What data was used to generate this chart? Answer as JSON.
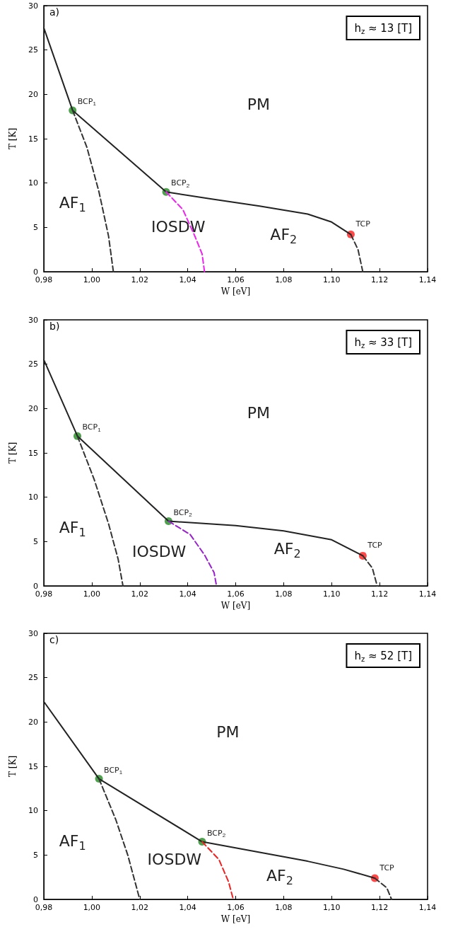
{
  "chart_data": [
    {
      "type": "line",
      "title": "a)",
      "subtitle": "h$_{z}$ ≈ 13 [T]",
      "xlabel": "W [eV]",
      "ylabel": "T [K]",
      "xlim": [
        0.98,
        1.14
      ],
      "xticks": [
        {
          "value": 0.98,
          "label": "0,98"
        },
        {
          "value": 1.0,
          "label": "1,00"
        },
        {
          "value": 1.02,
          "label": "1,02"
        },
        {
          "value": 1.04,
          "label": "1,04"
        },
        {
          "value": 1.06,
          "label": "1,06"
        },
        {
          "value": 1.08,
          "label": "1,08"
        },
        {
          "value": 1.1,
          "label": "1,10"
        },
        {
          "value": 1.12,
          "label": "1,12"
        },
        {
          "value": 1.14,
          "label": "1,14"
        }
      ],
      "ylim": [
        0,
        30
      ],
      "yticks": [
        0,
        5,
        10,
        15,
        20,
        25,
        30
      ],
      "grid": false,
      "series": [
        {
          "color": "#222222",
          "line_style": "solid",
          "x": [
            0.98,
            0.992,
            1.031,
            1.05,
            1.07,
            1.09,
            1.1,
            1.108
          ],
          "values": [
            27.5,
            18.2,
            9,
            8.2,
            7.4,
            6.5,
            5.6,
            4.2
          ]
        },
        {
          "color": "#333333",
          "line_style": "dashed",
          "x": [
            0.992,
            0.998,
            1.003,
            1.007,
            1.009
          ],
          "values": [
            18.2,
            14,
            9,
            4,
            0
          ]
        },
        {
          "color": "#ee22ee",
          "line_style": "dashed",
          "x": [
            1.031,
            1.038,
            1.043,
            1.046,
            1.047
          ],
          "values": [
            9,
            7,
            4,
            2,
            0
          ]
        },
        {
          "color": "#333333",
          "line_style": "dashed",
          "x": [
            1.108,
            1.111,
            1.113
          ],
          "values": [
            4.2,
            2.5,
            0
          ]
        },
        {
          "type": "scatter",
          "marker": "circle",
          "x": [
            0.992,
            1.031
          ],
          "values": [
            18.2,
            9
          ],
          "color": "#228b22"
        },
        {
          "type": "scatter",
          "marker": "circle",
          "x": [
            1.108
          ],
          "values": [
            4.2
          ],
          "color": "#ff1a1a"
        }
      ],
      "annotations": [
        {
          "text": "BCP$_{1}$",
          "x": 0.992,
          "y": 18.2
        },
        {
          "text": "BCP$_{2}$",
          "x": 1.031,
          "y": 9
        },
        {
          "text": "TCP",
          "x": 1.108,
          "y": 4.2
        },
        "PM",
        "AF$_{1}$",
        "IOSDW",
        "AF$_{2}$"
      ]
    },
    {
      "type": "line",
      "title": "b)",
      "subtitle": "h$_{z}$ ≈ 33 [T]",
      "xlabel": "W [eV]",
      "ylabel": "T [K]",
      "xlim": [
        0.98,
        1.14
      ],
      "xticks": [
        {
          "value": 0.98,
          "label": "0,98"
        },
        {
          "value": 1.0,
          "label": "1,00"
        },
        {
          "value": 1.02,
          "label": "1,02"
        },
        {
          "value": 1.04,
          "label": "1,04"
        },
        {
          "value": 1.06,
          "label": "1,06"
        },
        {
          "value": 1.08,
          "label": "1,08"
        },
        {
          "value": 1.1,
          "label": "1,10"
        },
        {
          "value": 1.12,
          "label": "1,12"
        },
        {
          "value": 1.14,
          "label": "1,14"
        }
      ],
      "ylim": [
        0,
        30
      ],
      "yticks": [
        0,
        5,
        10,
        15,
        20,
        25,
        30
      ],
      "grid": false,
      "series": [
        {
          "color": "#222222",
          "line_style": "solid",
          "x": [
            0.98,
            0.994,
            1.032,
            1.06,
            1.08,
            1.1,
            1.113
          ],
          "values": [
            25.5,
            16.9,
            7.3,
            6.8,
            6.2,
            5.2,
            3.4
          ]
        },
        {
          "color": "#333333",
          "line_style": "dashed",
          "x": [
            0.994,
            1.001,
            1.007,
            1.011,
            1.013
          ],
          "values": [
            16.9,
            12,
            7,
            3,
            0
          ]
        },
        {
          "color": "#9922cc",
          "line_style": "dashed",
          "x": [
            1.032,
            1.041,
            1.047,
            1.051,
            1.052
          ],
          "values": [
            7.3,
            5.8,
            3.5,
            1.5,
            0
          ]
        },
        {
          "color": "#333333",
          "line_style": "dashed",
          "x": [
            1.113,
            1.117,
            1.119
          ],
          "values": [
            3.4,
            2,
            0
          ]
        },
        {
          "type": "scatter",
          "marker": "circle",
          "x": [
            0.994,
            1.032
          ],
          "values": [
            16.9,
            7.3
          ],
          "color": "#228b22"
        },
        {
          "type": "scatter",
          "marker": "circle",
          "x": [
            1.113
          ],
          "values": [
            3.4
          ],
          "color": "#ff1a1a"
        }
      ],
      "annotations": [
        {
          "text": "BCP$_{1}$",
          "x": 0.994,
          "y": 16.9
        },
        {
          "text": "BCP$_{2}$",
          "x": 1.032,
          "y": 7.3
        },
        {
          "text": "TCP",
          "x": 1.113,
          "y": 3.4
        },
        "PM",
        "AF$_{1}$",
        "IOSDW",
        "AF$_{2}$"
      ]
    },
    {
      "type": "line",
      "title": "c)",
      "subtitle": "h$_{z}$ ≈ 52 [T]",
      "xlabel": "W [eV]",
      "ylabel": "T [K]",
      "xlim": [
        0.98,
        1.14
      ],
      "xticks": [
        {
          "value": 0.98,
          "label": "0,98"
        },
        {
          "value": 1.0,
          "label": "1,00"
        },
        {
          "value": 1.02,
          "label": "1,02"
        },
        {
          "value": 1.04,
          "label": "1,04"
        },
        {
          "value": 1.06,
          "label": "1,06"
        },
        {
          "value": 1.08,
          "label": "1,08"
        },
        {
          "value": 1.1,
          "label": "1,10"
        },
        {
          "value": 1.12,
          "label": "1,12"
        },
        {
          "value": 1.14,
          "label": "1,14"
        }
      ],
      "ylim": [
        0,
        30
      ],
      "yticks": [
        0,
        5,
        10,
        15,
        20,
        25,
        30
      ],
      "grid": false,
      "series": [
        {
          "color": "#222222",
          "line_style": "solid",
          "x": [
            0.98,
            1.003,
            1.046,
            1.07,
            1.09,
            1.105,
            1.118
          ],
          "values": [
            22.3,
            13.6,
            6.5,
            5.3,
            4.3,
            3.4,
            2.4
          ]
        },
        {
          "color": "#333333",
          "line_style": "dashed",
          "x": [
            1.003,
            1.01,
            1.015,
            1.018,
            1.02
          ],
          "values": [
            13.6,
            9,
            5,
            2,
            0
          ]
        },
        {
          "color": "#ee2222",
          "line_style": "dashed",
          "x": [
            1.046,
            1.053,
            1.057,
            1.059
          ],
          "values": [
            6.5,
            4.5,
            2,
            0
          ]
        },
        {
          "color": "#333333",
          "line_style": "dashed",
          "x": [
            1.118,
            1.123,
            1.125
          ],
          "values": [
            2.4,
            1.3,
            0
          ]
        },
        {
          "type": "scatter",
          "marker": "circle",
          "x": [
            1.003,
            1.046
          ],
          "values": [
            13.6,
            6.5
          ],
          "color": "#228b22"
        },
        {
          "type": "scatter",
          "marker": "circle",
          "x": [
            1.118
          ],
          "values": [
            2.4
          ],
          "color": "#ff1a1a"
        }
      ],
      "annotations": [
        {
          "text": "BCP$_{1}$",
          "x": 1.003,
          "y": 13.6
        },
        {
          "text": "BCP$_{2}$",
          "x": 1.046,
          "y": 6.5
        },
        {
          "text": "TCP",
          "x": 1.118,
          "y": 2.4
        },
        "PM",
        "AF$_{1}$",
        "IOSDW",
        "AF$_{2}$"
      ]
    }
  ]
}
